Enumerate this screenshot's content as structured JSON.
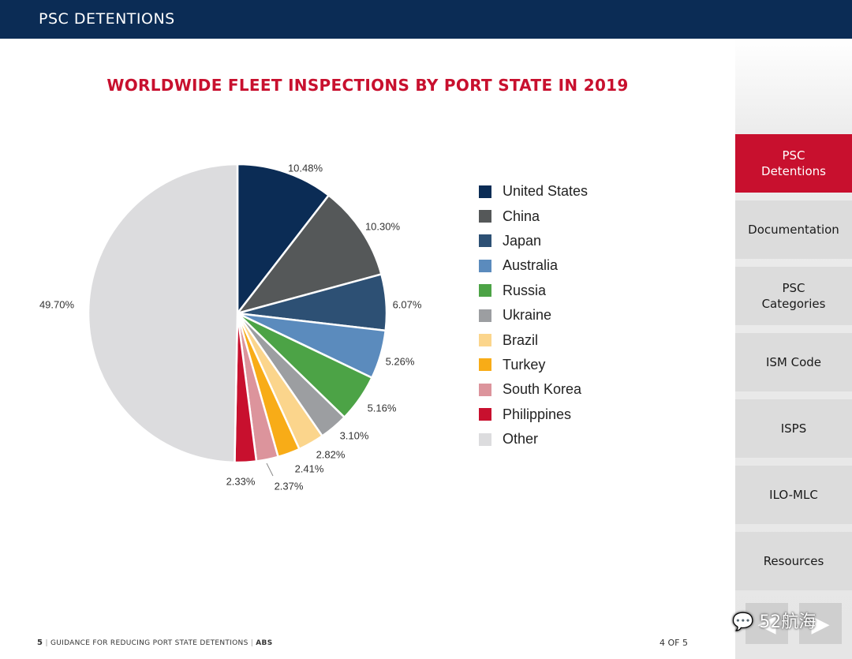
{
  "header": {
    "title": "PSC DETENTIONS"
  },
  "chart_data": {
    "type": "pie",
    "title": "WORLDWIDE FLEET INSPECTIONS BY PORT STATE IN 2019",
    "slices": [
      {
        "name": "United States",
        "value": 10.48,
        "label": "10.48%",
        "color": "#0b2c55"
      },
      {
        "name": "China",
        "value": 10.3,
        "label": "10.30%",
        "color": "#555859"
      },
      {
        "name": "Japan",
        "value": 6.07,
        "label": "6.07%",
        "color": "#2d5074"
      },
      {
        "name": "Australia",
        "value": 5.26,
        "label": "5.26%",
        "color": "#5b8bbd"
      },
      {
        "name": "Russia",
        "value": 5.16,
        "label": "5.16%",
        "color": "#4ca346"
      },
      {
        "name": "Ukraine",
        "value": 3.1,
        "label": "3.10%",
        "color": "#9c9ea1"
      },
      {
        "name": "Brazil",
        "value": 2.82,
        "label": "2.82%",
        "color": "#fbd58c"
      },
      {
        "name": "Turkey",
        "value": 2.41,
        "label": "2.41%",
        "color": "#f8ac17"
      },
      {
        "name": "South Korea",
        "value": 2.37,
        "label": "2.37%",
        "color": "#dc949c"
      },
      {
        "name": "Philippines",
        "value": 2.33,
        "label": "2.33%",
        "color": "#c8102e"
      },
      {
        "name": "Other",
        "value": 49.7,
        "label": "49.70%",
        "color": "#dcdcde"
      }
    ],
    "legend_position": "right"
  },
  "sidebar": {
    "items": [
      {
        "label": "PSC Detentions",
        "active": true
      },
      {
        "label": "Documentation",
        "active": false
      },
      {
        "label": "PSC Categories",
        "active": false
      },
      {
        "label": "ISM Code",
        "active": false
      },
      {
        "label": "ISPS",
        "active": false
      },
      {
        "label": "ILO-MLC",
        "active": false
      },
      {
        "label": "Resources",
        "active": false
      }
    ]
  },
  "nav": {
    "prev_icon": "triangle-left-icon",
    "next_icon": "triangle-right-icon"
  },
  "watermark": {
    "text": "52航海"
  },
  "footer": {
    "page_number": "5",
    "doc_title": "GUIDANCE FOR REDUCING PORT STATE DETENTIONS",
    "brand": "ABS",
    "page_indicator": "4 OF 5"
  }
}
